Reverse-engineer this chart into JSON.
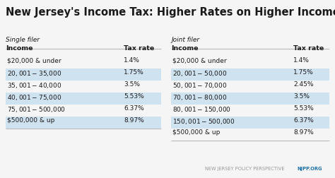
{
  "title": "New Jersey's Income Tax: Higher Rates on Higher Income",
  "single_filer_label": "Single filer",
  "joint_filer_label": "Joint filer",
  "col_headers": [
    "Income",
    "Tax rate"
  ],
  "single_rows": [
    [
      "$20,000 & under",
      "1.4%"
    ],
    [
      "$20,001 - $35,000",
      "1.75%"
    ],
    [
      "$35,001 - $40,000",
      "3.5%"
    ],
    [
      "$40,001 - $75,000",
      "5.53%"
    ],
    [
      "$75,001 - $500,000",
      "6.37%"
    ],
    [
      "$500,000 & up",
      "8.97%"
    ]
  ],
  "joint_rows": [
    [
      "$20,000 & under",
      "1.4%"
    ],
    [
      "$20,001 - $50,000",
      "1.75%"
    ],
    [
      "$50,001 - $70,000",
      "2.45%"
    ],
    [
      "$70,001 - $80,000",
      "3.5%"
    ],
    [
      "$80,001 - $150,000",
      "5.53%"
    ],
    [
      "$150,001 - $500,000",
      "6.37%"
    ],
    [
      "$500,000 & up",
      "8.97%"
    ]
  ],
  "single_highlighted_rows": [
    1,
    3,
    5
  ],
  "joint_highlighted_rows": [
    1,
    3,
    5
  ],
  "highlight_color": "#cfe2f0",
  "bg_color": "#f5f5f5",
  "title_fontsize": 10.5,
  "filer_fontsize": 6.5,
  "header_fontsize": 6.8,
  "body_fontsize": 6.5,
  "footer_text": "NEW JERSEY POLICY PERSPECTIVE",
  "footer_link": "NJPP.ORG",
  "footer_color": "#999999",
  "footer_link_color": "#1a6fa8",
  "divider_color": "#bbbbbb",
  "text_color": "#1a1a1a"
}
